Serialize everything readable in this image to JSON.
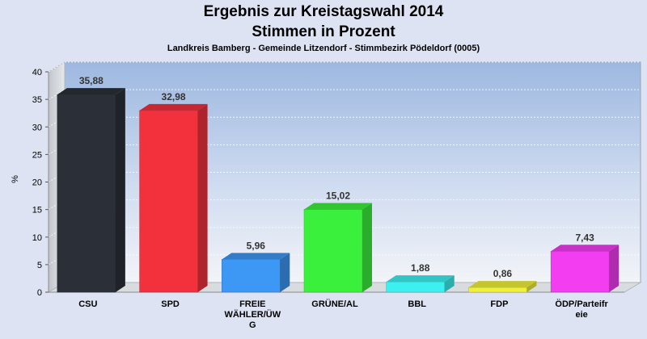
{
  "chart_data": {
    "type": "bar",
    "title": "Ergebnis zur Kreistagswahl 2014",
    "subtitle": "Stimmen in Prozent",
    "subsubtitle": "Landkreis Bamberg - Gemeinde Litzendorf - Stimmbezirk Pödeldorf (0005)",
    "ylabel": "%",
    "xlabel": "",
    "ylim": [
      0,
      40
    ],
    "yticks": [
      0,
      5,
      10,
      15,
      20,
      25,
      30,
      35,
      40
    ],
    "grid": true,
    "categories": [
      [
        "CSU"
      ],
      [
        "SPD"
      ],
      [
        "FREIE",
        "WÄHLER/ÜW",
        "G"
      ],
      [
        "GRÜNE/AL"
      ],
      [
        "BBL"
      ],
      [
        "FDP"
      ],
      [
        "ÖDP/Parteifr",
        "eie"
      ]
    ],
    "values": [
      35.88,
      32.98,
      5.96,
      15.02,
      1.88,
      0.86,
      7.43
    ],
    "value_labels": [
      "35,88",
      "32,98",
      "5,96",
      "15,02",
      "1,88",
      "0,86",
      "7,43"
    ],
    "colors": [
      "#2b2f38",
      "#f2313d",
      "#3d97f5",
      "#3bf03c",
      "#3cf0f0",
      "#f0f03a",
      "#f23df0"
    ]
  }
}
